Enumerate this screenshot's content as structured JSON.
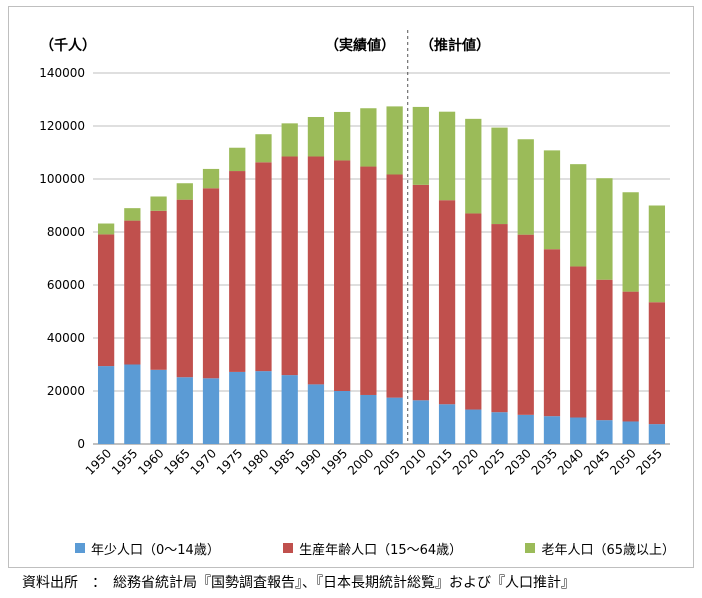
{
  "unit_label": "（千人）",
  "annotations": {
    "actual": "（実績値）",
    "projected": "（推計値）"
  },
  "source": "資料出所　：　総務省統計局『国勢調査報告』、『日本長期統計総覧』および『人口推計』",
  "colors": {
    "young": "#5b9bd5",
    "working": "#c0504d",
    "elderly": "#9bbb59"
  },
  "chart_data": {
    "type": "bar",
    "stacked": true,
    "categories": [
      "1950",
      "1955",
      "1960",
      "1965",
      "1970",
      "1975",
      "1980",
      "1985",
      "1990",
      "1995",
      "2000",
      "2005",
      "2010",
      "2015",
      "2020",
      "2025",
      "2030",
      "2035",
      "2040",
      "2045",
      "2050",
      "2055"
    ],
    "series": [
      {
        "name": "年少人口（0〜14歳）",
        "values": [
          29400,
          30000,
          28000,
          25200,
          24800,
          27200,
          27500,
          26000,
          22500,
          20000,
          18500,
          17500,
          16500,
          15000,
          13000,
          12000,
          11000,
          10500,
          10000,
          9000,
          8500,
          7500
        ]
      },
      {
        "name": "生産年齢人口（15〜64歳）",
        "values": [
          49700,
          54300,
          60000,
          67000,
          71700,
          75800,
          78800,
          82500,
          86000,
          87000,
          86200,
          84200,
          81300,
          77000,
          74000,
          71000,
          68000,
          63000,
          57000,
          53000,
          49000,
          46000
        ]
      },
      {
        "name": "老年人口（65歳以上）",
        "values": [
          4100,
          4700,
          5400,
          6200,
          7300,
          8800,
          10600,
          12500,
          14900,
          18300,
          22000,
          25700,
          29400,
          33400,
          35700,
          36400,
          36000,
          37300,
          38600,
          38300,
          37500,
          36500
        ]
      }
    ],
    "ylim": [
      0,
      140000
    ],
    "yticks": [
      0,
      20000,
      40000,
      60000,
      80000,
      100000,
      120000,
      140000
    ],
    "divider_after": "2005",
    "grid": true,
    "legend_position": "bottom"
  }
}
